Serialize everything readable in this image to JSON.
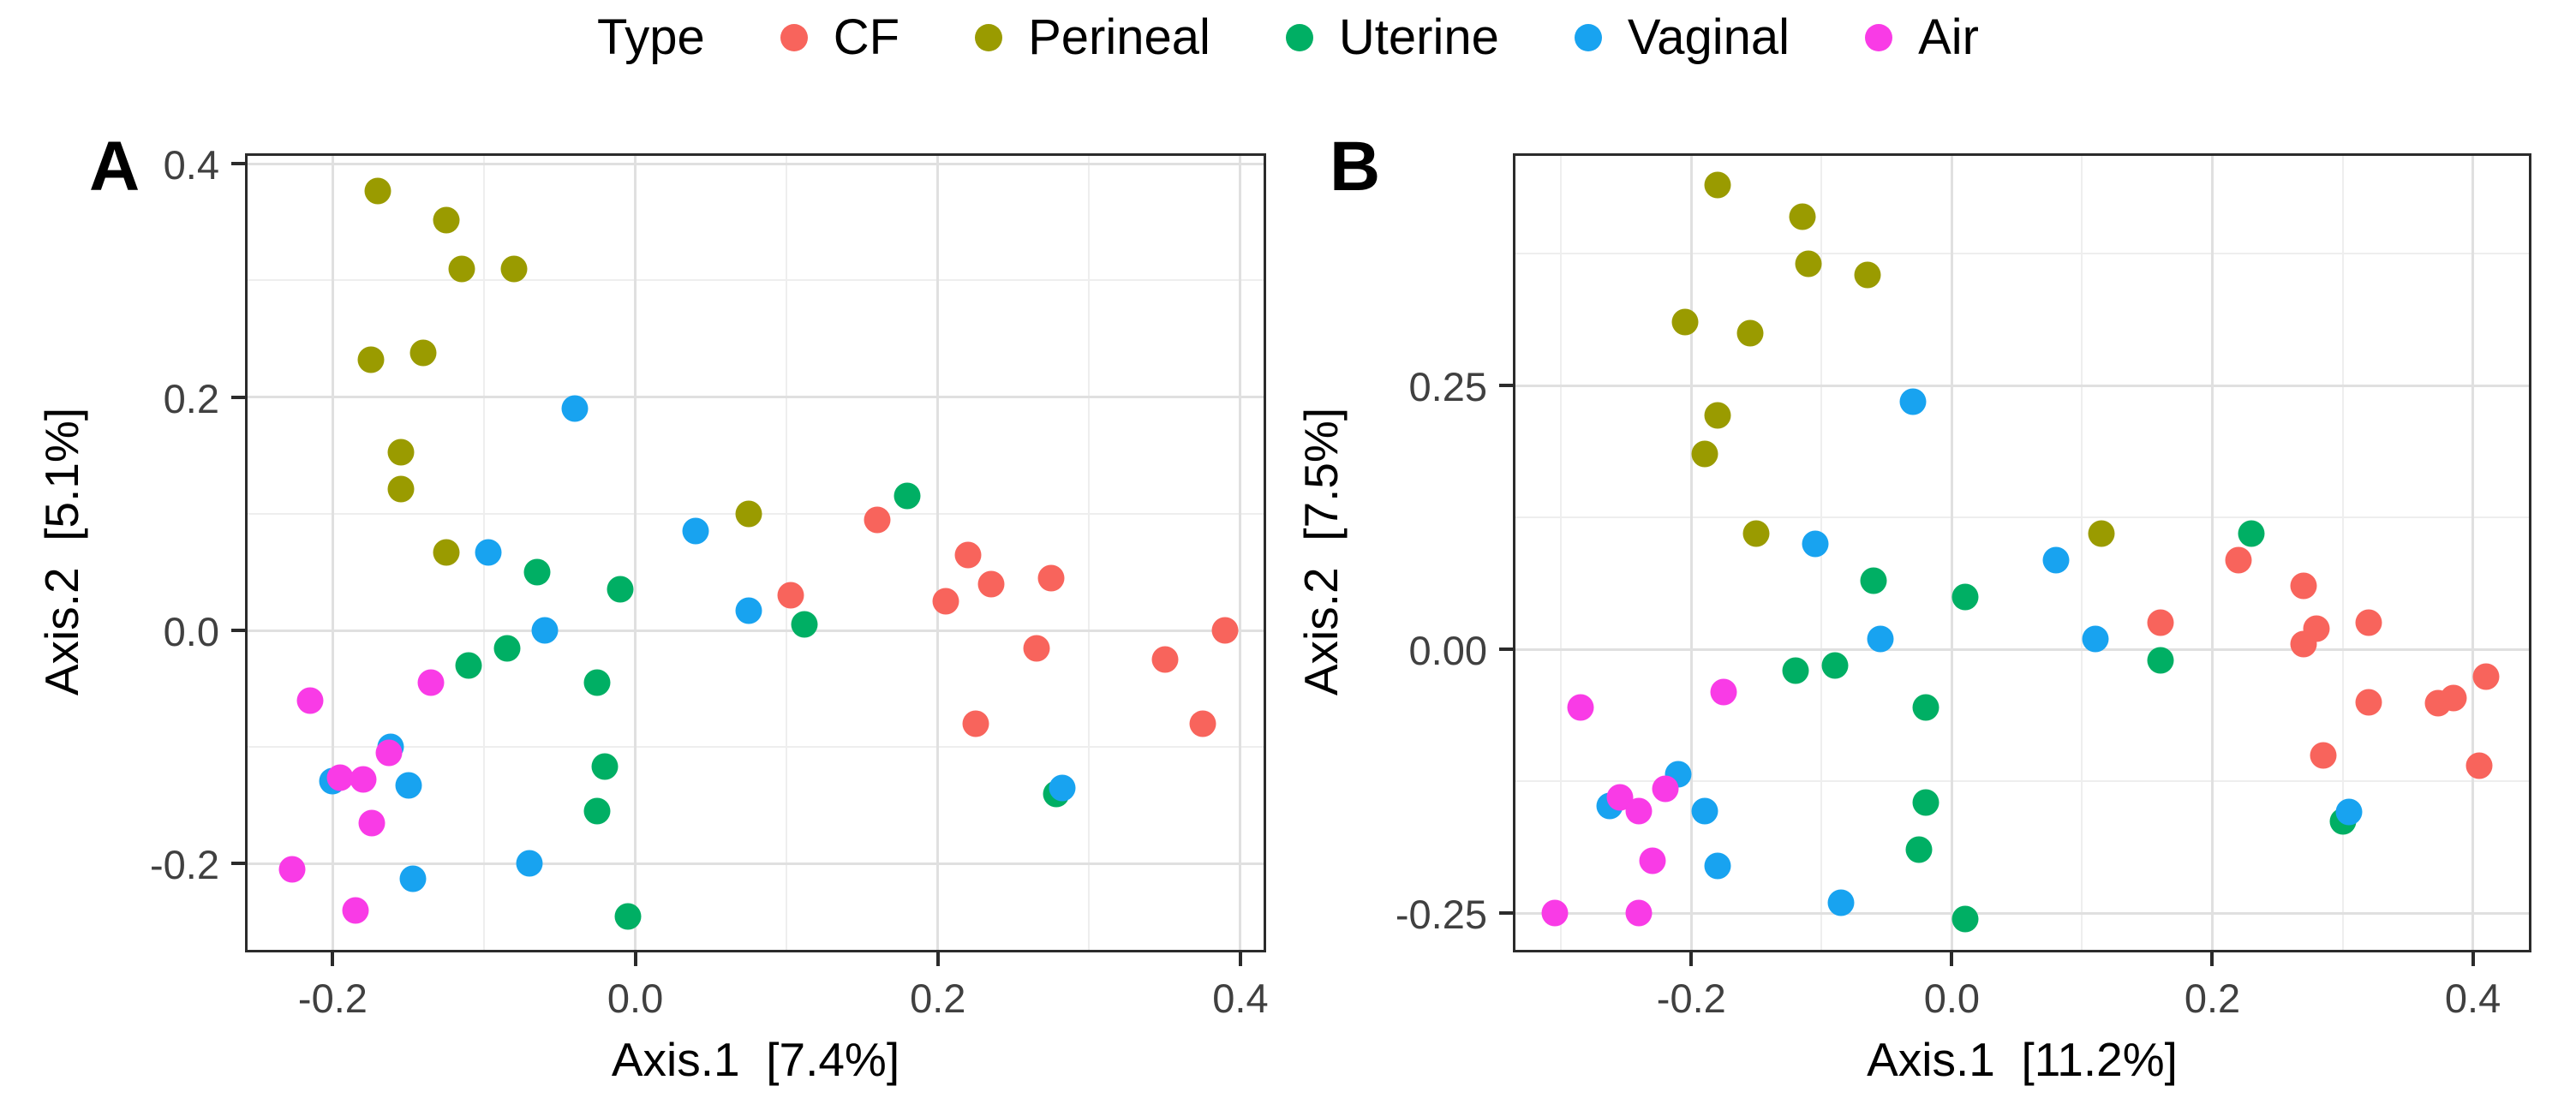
{
  "legend": {
    "title": "Type",
    "items": [
      {
        "label": "CF",
        "color": "#F8645C"
      },
      {
        "label": "Perineal",
        "color": "#9A9B00"
      },
      {
        "label": "Uterine",
        "color": "#00AF64"
      },
      {
        "label": "Vaginal",
        "color": "#18A3F0"
      },
      {
        "label": "Air",
        "color": "#F93BE6"
      }
    ]
  },
  "chart_data": [
    {
      "type": "scatter",
      "panel_label": "A",
      "xlabel": "Axis.1  [7.4%]",
      "ylabel": "Axis.2  [5.1%]",
      "xlim": [
        -0.258,
        0.417
      ],
      "ylim": [
        -0.276,
        0.409
      ],
      "x_ticks": [
        -0.2,
        0.0,
        0.2,
        0.4
      ],
      "x_tick_labels": [
        "-0.2",
        "0.0",
        "0.2",
        "0.4"
      ],
      "y_ticks": [
        -0.2,
        0.0,
        0.2,
        0.4
      ],
      "y_tick_labels": [
        "-0.2",
        "0.0",
        "0.2",
        "0.4"
      ],
      "grid": "major+minor",
      "legend_position": "top",
      "series": [
        {
          "name": "CF",
          "color": "#F8645C",
          "points": [
            [
              0.16,
              0.095
            ],
            [
              0.103,
              0.03
            ],
            [
              0.205,
              0.025
            ],
            [
              0.22,
              0.065
            ],
            [
              0.235,
              0.04
            ],
            [
              0.275,
              0.045
            ],
            [
              0.265,
              -0.015
            ],
            [
              0.35,
              -0.025
            ],
            [
              0.39,
              0.0
            ],
            [
              0.225,
              -0.08
            ],
            [
              0.375,
              -0.08
            ]
          ]
        },
        {
          "name": "Perineal",
          "color": "#9A9B00",
          "points": [
            [
              -0.17,
              0.377
            ],
            [
              -0.125,
              0.352
            ],
            [
              -0.115,
              0.31
            ],
            [
              -0.08,
              0.31
            ],
            [
              -0.175,
              0.232
            ],
            [
              -0.14,
              0.238
            ],
            [
              -0.155,
              0.153
            ],
            [
              -0.155,
              0.121
            ],
            [
              -0.125,
              0.067
            ],
            [
              0.075,
              0.1
            ]
          ]
        },
        {
          "name": "Uterine",
          "color": "#00AF64",
          "points": [
            [
              -0.065,
              0.05
            ],
            [
              -0.01,
              0.035
            ],
            [
              -0.085,
              -0.015
            ],
            [
              -0.11,
              -0.03
            ],
            [
              -0.025,
              -0.045
            ],
            [
              -0.02,
              -0.117
            ],
            [
              -0.025,
              -0.155
            ],
            [
              -0.005,
              -0.245
            ],
            [
              0.18,
              0.115
            ],
            [
              0.112,
              0.005
            ],
            [
              0.278,
              -0.14
            ]
          ]
        },
        {
          "name": "Vaginal",
          "color": "#18A3F0",
          "points": [
            [
              -0.04,
              0.19
            ],
            [
              -0.097,
              0.067
            ],
            [
              0.04,
              0.085
            ],
            [
              0.075,
              0.017
            ],
            [
              -0.06,
              0.0
            ],
            [
              -0.162,
              -0.1
            ],
            [
              -0.2,
              -0.129
            ],
            [
              -0.15,
              -0.133
            ],
            [
              -0.07,
              -0.2
            ],
            [
              -0.147,
              -0.213
            ],
            [
              0.282,
              -0.135
            ]
          ]
        },
        {
          "name": "Air",
          "color": "#F93BE6",
          "points": [
            [
              -0.135,
              -0.045
            ],
            [
              -0.215,
              -0.06
            ],
            [
              -0.163,
              -0.105
            ],
            [
              -0.195,
              -0.126
            ],
            [
              -0.18,
              -0.128
            ],
            [
              -0.174,
              -0.165
            ],
            [
              -0.227,
              -0.205
            ],
            [
              -0.185,
              -0.24
            ]
          ]
        }
      ]
    },
    {
      "type": "scatter",
      "panel_label": "B",
      "xlabel": "Axis.1  [11.2%]",
      "ylabel": "Axis.2  [7.5%]",
      "xlim": [
        -0.337,
        0.445
      ],
      "ylim": [
        -0.287,
        0.47
      ],
      "x_ticks": [
        -0.2,
        0.0,
        0.2,
        0.4
      ],
      "x_tick_labels": [
        "-0.2",
        "0.0",
        "0.2",
        "0.4"
      ],
      "y_ticks": [
        -0.25,
        0.0,
        0.25
      ],
      "y_tick_labels": [
        "-0.25",
        "0.00",
        "0.25"
      ],
      "grid": "major+minor",
      "legend_position": "top",
      "series": [
        {
          "name": "CF",
          "color": "#F8645C",
          "points": [
            [
              0.22,
              0.085
            ],
            [
              0.27,
              0.06
            ],
            [
              0.16,
              0.025
            ],
            [
              0.28,
              0.02
            ],
            [
              0.27,
              0.005
            ],
            [
              0.32,
              0.025
            ],
            [
              0.32,
              -0.05
            ],
            [
              0.373,
              -0.051
            ],
            [
              0.385,
              -0.046
            ],
            [
              0.41,
              -0.026
            ],
            [
              0.285,
              -0.1
            ],
            [
              0.405,
              -0.11
            ]
          ]
        },
        {
          "name": "Perineal",
          "color": "#9A9B00",
          "points": [
            [
              -0.18,
              0.44
            ],
            [
              -0.115,
              0.41
            ],
            [
              -0.11,
              0.365
            ],
            [
              -0.065,
              0.355
            ],
            [
              -0.205,
              0.31
            ],
            [
              -0.155,
              0.3
            ],
            [
              -0.18,
              0.222
            ],
            [
              -0.19,
              0.185
            ],
            [
              -0.15,
              0.11
            ],
            [
              0.115,
              0.11
            ]
          ]
        },
        {
          "name": "Uterine",
          "color": "#00AF64",
          "points": [
            [
              -0.06,
              0.065
            ],
            [
              0.01,
              0.05
            ],
            [
              -0.09,
              -0.015
            ],
            [
              -0.12,
              -0.02
            ],
            [
              -0.02,
              -0.055
            ],
            [
              -0.02,
              -0.145
            ],
            [
              -0.025,
              -0.19
            ],
            [
              0.01,
              -0.255
            ],
            [
              0.23,
              0.11
            ],
            [
              0.16,
              -0.01
            ],
            [
              0.3,
              -0.163
            ]
          ]
        },
        {
          "name": "Vaginal",
          "color": "#18A3F0",
          "points": [
            [
              -0.03,
              0.235
            ],
            [
              -0.105,
              0.1
            ],
            [
              0.08,
              0.085
            ],
            [
              -0.055,
              0.01
            ],
            [
              0.11,
              0.01
            ],
            [
              -0.21,
              -0.118
            ],
            [
              -0.263,
              -0.148
            ],
            [
              -0.19,
              -0.153
            ],
            [
              -0.18,
              -0.205
            ],
            [
              -0.085,
              -0.24
            ],
            [
              0.305,
              -0.154
            ]
          ]
        },
        {
          "name": "Air",
          "color": "#F93BE6",
          "points": [
            [
              -0.285,
              -0.055
            ],
            [
              -0.175,
              -0.04
            ],
            [
              -0.22,
              -0.132
            ],
            [
              -0.255,
              -0.14
            ],
            [
              -0.24,
              -0.153
            ],
            [
              -0.23,
              -0.2
            ],
            [
              -0.305,
              -0.25
            ],
            [
              -0.24,
              -0.25
            ]
          ]
        }
      ]
    }
  ]
}
